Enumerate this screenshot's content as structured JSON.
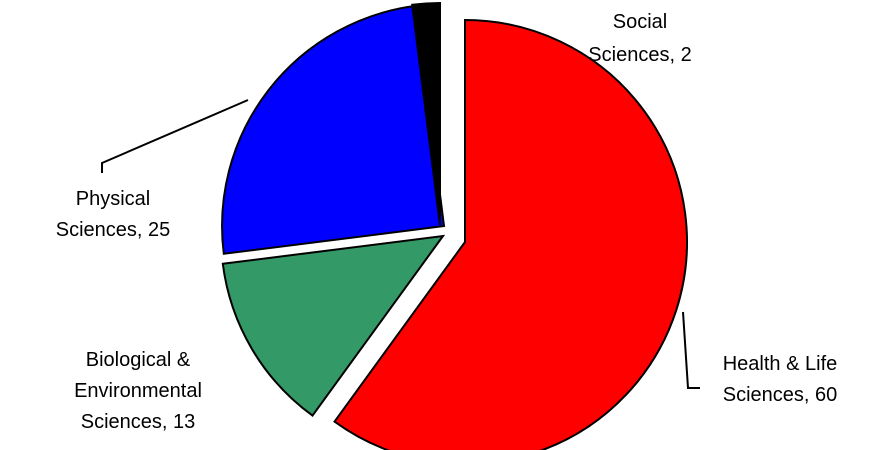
{
  "chart_data": {
    "type": "pie",
    "title": "",
    "categories": [
      "Health & Life Sciences",
      "Biological & Environmental Sciences",
      "Physical Sciences",
      "Social Sciences"
    ],
    "values": [
      60,
      13,
      25,
      2
    ],
    "colors": [
      "#ff0000",
      "#339966",
      "#0000ff",
      "#000000"
    ],
    "labels": [
      {
        "lines": [
          "Health & Life",
          "Sciences, 60"
        ]
      },
      {
        "lines": [
          "Biological &",
          "Environmental",
          "Sciences, 13"
        ]
      },
      {
        "lines": [
          "Physical",
          "Sciences, 25"
        ]
      },
      {
        "lines": [
          "Social",
          "Sciences, 2"
        ]
      }
    ],
    "exploded": true,
    "legend": "none"
  }
}
